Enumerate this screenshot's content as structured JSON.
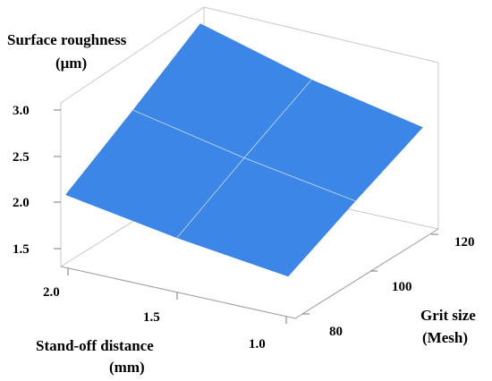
{
  "chart_data": {
    "type": "surface",
    "zlabel_line1": "Surface roughness",
    "zlabel_line2": "(μm)",
    "xlabel_line1": "Stand-off distance",
    "xlabel_line2": "(mm)",
    "ylabel_line1": "Grit size",
    "ylabel_line2": "(Mesh)",
    "z_ticks": [
      "3.0",
      "2.5",
      "2.0",
      "1.5"
    ],
    "x_ticks": [
      "2.0",
      "1.5",
      "1.0"
    ],
    "y_ticks": [
      "120",
      "100",
      "80"
    ],
    "x_values": [
      2.0,
      1.5,
      1.0
    ],
    "y_values": [
      80,
      100,
      120
    ],
    "z_grid": [
      [
        2.1,
        2.55,
        3.02
      ],
      [
        1.9,
        2.3,
        2.68
      ],
      [
        1.75,
        2.1,
        2.43
      ]
    ],
    "surface_color": "#3b86e6",
    "grid": false
  }
}
